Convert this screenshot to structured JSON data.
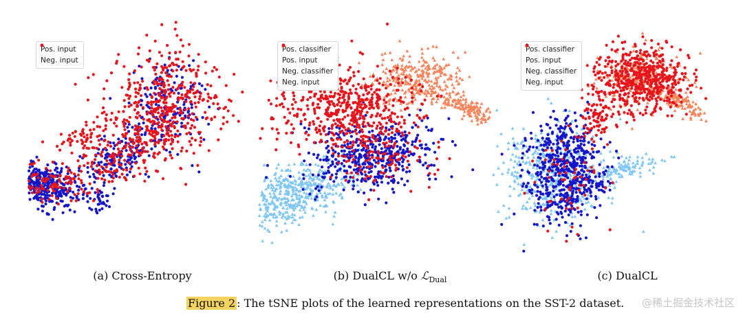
{
  "figure": {
    "label": "Figure 2",
    "text": ": The tSNE plots of the learned representations on the SST-2 dataset."
  },
  "watermark": "@稀土掘金技术社区",
  "colors": {
    "pos_classifier": "#7ec6f4",
    "pos_input": "#1616c8",
    "neg_classifier": "#f7845a",
    "neg_input": "#e8141c"
  },
  "chart_data": [
    {
      "type": "scatter",
      "title": "",
      "caption": "(a) Cross-Entropy",
      "xlabel": "",
      "ylabel": "",
      "axes_visible": false,
      "legend_position": "upper-left",
      "series": [
        {
          "name": "Pos. input",
          "marker": "circle",
          "color": "#1616c8",
          "clusters": [
            {
              "cx": -62,
              "cy": -28,
              "sx": 14,
              "sy": 7,
              "rot": -0.2,
              "n": 380
            },
            {
              "cx": -8,
              "cy": -8,
              "sx": 20,
              "sy": 8,
              "rot": 0.6,
              "n": 180
            },
            {
              "cx": 30,
              "cy": 32,
              "sx": 14,
              "sy": 16,
              "rot": 0.3,
              "n": 160
            },
            {
              "cx": -20,
              "cy": -38,
              "sx": 3,
              "sy": 5,
              "rot": 0,
              "n": 30
            }
          ]
        },
        {
          "name": "Neg. input",
          "marker": "circle",
          "color": "#e8141c",
          "clusters": [
            {
              "cx": 28,
              "cy": 32,
              "sx": 20,
              "sy": 20,
              "rot": 0.3,
              "n": 380
            },
            {
              "cx": 0,
              "cy": 0,
              "sx": 30,
              "sy": 10,
              "rot": 0.55,
              "n": 260
            },
            {
              "cx": -60,
              "cy": -26,
              "sx": 16,
              "sy": 8,
              "rot": -0.2,
              "n": 100
            },
            {
              "cx": -30,
              "cy": 8,
              "sx": 12,
              "sy": 5,
              "rot": 0.3,
              "n": 60
            }
          ]
        }
      ]
    },
    {
      "type": "scatter",
      "title": "",
      "caption_prefix": "(b) DualCL w/o ",
      "caption_math": "ℒ",
      "caption_sub": "Dual",
      "xlabel": "",
      "ylabel": "",
      "axes_visible": false,
      "legend_position": "upper-left",
      "series": [
        {
          "name": "Pos. classifier",
          "marker": "triangle",
          "color": "#7ec6f4",
          "clusters": [
            {
              "cx": -55,
              "cy": -38,
              "sx": 22,
              "sy": 10,
              "rot": 0.35,
              "n": 520
            }
          ]
        },
        {
          "name": "Pos. input",
          "marker": "circle",
          "color": "#1616c8",
          "clusters": [
            {
              "cx": 0,
              "cy": -12,
              "sx": 22,
              "sy": 12,
              "rot": 0.1,
              "n": 480
            }
          ]
        },
        {
          "name": "Neg. classifier",
          "marker": "triangle",
          "color": "#f7845a",
          "clusters": [
            {
              "cx": 32,
              "cy": 42,
              "sx": 16,
              "sy": 10,
              "rot": 0.1,
              "n": 320
            },
            {
              "cx": 68,
              "cy": 22,
              "sx": 12,
              "sy": 3,
              "rot": -0.45,
              "n": 150
            }
          ]
        },
        {
          "name": "Neg. input",
          "marker": "circle",
          "color": "#e8141c",
          "clusters": [
            {
              "cx": -18,
              "cy": 22,
              "sx": 25,
              "sy": 14,
              "rot": 0.05,
              "n": 560
            },
            {
              "cx": 8,
              "cy": -14,
              "sx": 18,
              "sy": 10,
              "rot": 0,
              "n": 90
            }
          ]
        }
      ]
    },
    {
      "type": "scatter",
      "title": "",
      "caption": "(c) DualCL",
      "xlabel": "",
      "ylabel": "",
      "axes_visible": false,
      "legend_position": "upper-left",
      "series": [
        {
          "name": "Pos. classifier",
          "marker": "triangle",
          "color": "#7ec6f4",
          "clusters": [
            {
              "cx": -40,
              "cy": -25,
              "sx": 20,
              "sy": 17,
              "rot": 0,
              "n": 440
            },
            {
              "cx": 10,
              "cy": -20,
              "sx": 14,
              "sy": 4,
              "rot": 0.15,
              "n": 110
            }
          ]
        },
        {
          "name": "Pos. input",
          "marker": "circle",
          "color": "#1616c8",
          "clusters": [
            {
              "cx": -32,
              "cy": -22,
              "sx": 13,
              "sy": 20,
              "rot": 0,
              "n": 540
            },
            {
              "cx": -10,
              "cy": -30,
              "sx": 5,
              "sy": 5,
              "rot": 0,
              "n": 40
            }
          ]
        },
        {
          "name": "Neg. classifier",
          "marker": "triangle",
          "color": "#f7845a",
          "clusters": [
            {
              "cx": 22,
              "cy": 45,
              "sx": 14,
              "sy": 10,
              "rot": 0,
              "n": 240
            },
            {
              "cx": 50,
              "cy": 26,
              "sx": 10,
              "sy": 3,
              "rot": -0.55,
              "n": 110
            }
          ]
        },
        {
          "name": "Neg. input",
          "marker": "circle",
          "color": "#e8141c",
          "clusters": [
            {
              "cx": 22,
              "cy": 42,
              "sx": 17,
              "sy": 12,
              "rot": 0,
              "n": 560
            },
            {
              "cx": -8,
              "cy": 15,
              "sx": 5,
              "sy": 8,
              "rot": 0,
              "n": 70
            },
            {
              "cx": -30,
              "cy": -28,
              "sx": 12,
              "sy": 16,
              "rot": 0,
              "n": 60
            }
          ]
        }
      ]
    }
  ]
}
